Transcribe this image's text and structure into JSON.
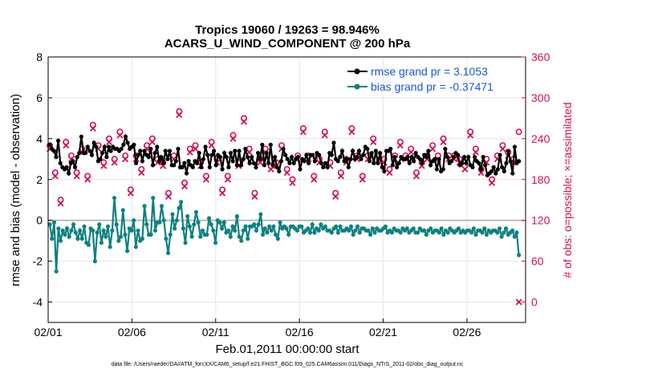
{
  "chart_data": {
    "type": "line",
    "title": "Tropics 19060 / 19263 = 98.946%",
    "subtitle": "ACARS_U_WIND_COMPONENT @ 200 hPa",
    "xlabel": "Feb.01,2011 00:00:00 start",
    "ylabel_left": "rmse and bias (model - observation)",
    "ylabel_right": "# of obs: o=possible; ×=assimilated",
    "ylim_left": [
      -5,
      8
    ],
    "ylim_right": [
      -30,
      360
    ],
    "xlim": [
      0,
      28.5
    ],
    "x_ticks": [
      0,
      5,
      10,
      15,
      20,
      25
    ],
    "x_tick_labels": [
      "02/01",
      "02/06",
      "02/11",
      "02/16",
      "02/21",
      "02/26"
    ],
    "y_ticks_left": [
      -4,
      -2,
      0,
      2,
      4,
      6,
      8
    ],
    "y_ticks_right": [
      0,
      60,
      120,
      180,
      240,
      300,
      360
    ],
    "legend": {
      "position": "top-right",
      "entries": [
        "rmse grand pr = 3.1053",
        "bias grand pr = -0.37471"
      ]
    },
    "footer": "data file: /Users/raeder/DAI/ATM_forcXX/CAM6_setup/f.e21.FHIST_BGC.f09_025.CAM6assim.011/Diags_NTrS_2011-02/obs_diag_output.nc",
    "series": [
      {
        "name": "rmse",
        "color": "#000000",
        "values": [
          3.7,
          3.5,
          3.4,
          3.1,
          3.9,
          2.8,
          2.6,
          2.5,
          2.6,
          2.3,
          2.8,
          2.9,
          2.6,
          3.1,
          3.3,
          4.1,
          3.3,
          3.3,
          3.6,
          3.4,
          3.2,
          3.8,
          3.6,
          2.9,
          3.0,
          3.3,
          3.6,
          3.1,
          3.6,
          3.4,
          3.6,
          3.5,
          3.5,
          3.4,
          3.5,
          3.7,
          4.1,
          3.8,
          3.5,
          3.6,
          3.7,
          2.8,
          3.2,
          3.4,
          2.9,
          3.4,
          3.2,
          3.1,
          3.5,
          2.7,
          3.3,
          3.6,
          2.9,
          3.1,
          2.8,
          3.4,
          3.0,
          3.4,
          2.7,
          2.7,
          2.9,
          3.5,
          2.6,
          2.6,
          2.8,
          2.3,
          2.9,
          2.7,
          2.6,
          2.9,
          2.8,
          3.3,
          2.6,
          3.0,
          3.6,
          3.2,
          2.6,
          3.2,
          3.4,
          2.7,
          3.2,
          3.1,
          2.5,
          3.3,
          3.1,
          2.6,
          3.3,
          2.9,
          3.4,
          2.7,
          3.4,
          2.7,
          3.0,
          3.5,
          3.1,
          2.8,
          3.1,
          2.8,
          2.6,
          3.3,
          3.0,
          3.7,
          2.7,
          3.3,
          2.8,
          3.7,
          2.7,
          3.1,
          2.6,
          2.4,
          2.9,
          3.5,
          3.2,
          3.0,
          2.8,
          3.1,
          2.8,
          3.0,
          3.1,
          2.5,
          3.0,
          2.9,
          3.2,
          2.8,
          3.2,
          3.2,
          2.9,
          3.3,
          3.2,
          2.8,
          2.6,
          2.8,
          2.6,
          3.3,
          3.2,
          3.8,
          3.0,
          2.9,
          3.1,
          3.4,
          2.9,
          3.0,
          2.6,
          3.0,
          3.4,
          3.0,
          3.1,
          3.4,
          3.0,
          3.2,
          3.6,
          3.5,
          2.9,
          3.3,
          2.8,
          3.4,
          2.8,
          3.3,
          2.6,
          2.4,
          3.4,
          3.4,
          3.5,
          2.7,
          3.1,
          2.6,
          2.8,
          3.1,
          3.0,
          3.0,
          3.1,
          2.8,
          3.1,
          2.9,
          3.3,
          3.1,
          3.0,
          2.8,
          3.2,
          3.1,
          3.4,
          2.7,
          2.9,
          3.0,
          2.5,
          3.0,
          2.4,
          2.5,
          3.5,
          3.1,
          2.8,
          2.9,
          3.1,
          3.3,
          3.2,
          2.7,
          2.8,
          3.1,
          2.8,
          3.1,
          2.7,
          2.6,
          3.1,
          2.9,
          2.8,
          2.5,
          3.1,
          2.7,
          2.2,
          2.3,
          2.4,
          2.6,
          2.3,
          2.5,
          3.2,
          2.6,
          2.4,
          2.8,
          3.4,
          2.9,
          2.3,
          3.6,
          2.8,
          2.9
        ]
      },
      {
        "name": "bias",
        "color": "#108080",
        "values": [
          -0.2,
          -0.9,
          -0.1,
          -2.5,
          -0.4,
          -1.0,
          -0.5,
          -0.7,
          -0.4,
          -0.8,
          -0.5,
          -0.2,
          -0.6,
          -0.9,
          -0.5,
          -0.9,
          -0.3,
          -1.1,
          -1.2,
          -0.4,
          -0.5,
          -2.0,
          -0.6,
          -0.2,
          -1.1,
          -0.5,
          -0.8,
          -0.3,
          -1.3,
          -0.5,
          1.1,
          -0.2,
          -1.0,
          -0.8,
          0.5,
          -0.7,
          -1.5,
          -0.4,
          -0.5,
          0.0,
          -1.3,
          -0.5,
          -1.0,
          -0.9,
          0.7,
          -0.2,
          -0.7,
          -0.7,
          1.1,
          -0.5,
          -0.1,
          -0.1,
          0.7,
          0.0,
          -0.9,
          -1.6,
          -0.7,
          0.3,
          -0.4,
          0.0,
          0.6,
          0.9,
          -0.4,
          -1.1,
          0.2,
          -0.3,
          -0.8,
          -0.2,
          0.4,
          -0.1,
          -0.8,
          -0.5,
          -0.7,
          -0.7,
          0.1,
          -0.2,
          -0.5,
          -1.1,
          0.0,
          -0.1,
          -0.4,
          -0.1,
          -0.6,
          -0.5,
          -0.8,
          -0.3,
          -0.5,
          0.2,
          -0.8,
          -1.0,
          -0.5,
          -0.3,
          -0.9,
          -0.3,
          -0.3,
          -0.2,
          -0.5,
          -0.2,
          0.3,
          -0.7,
          -0.4,
          -0.6,
          -0.3,
          -0.5,
          -0.3,
          -0.7,
          -0.9,
          -0.1,
          -0.4,
          -0.3,
          -0.4,
          -0.7,
          -0.3,
          -0.3,
          -0.4,
          -0.5,
          -0.3,
          -0.3,
          -0.6,
          -0.5,
          -0.4,
          -0.6,
          -0.2,
          -0.6,
          -0.4,
          -0.5,
          -0.2,
          -0.4,
          -0.3,
          -0.5,
          -0.5,
          -0.6,
          -0.4,
          -0.3,
          -0.6,
          -0.3,
          -0.5,
          -0.5,
          -0.4,
          -0.5,
          -0.3,
          -0.7,
          -0.5,
          -0.3,
          -0.6,
          -0.4,
          -0.4,
          -0.5,
          -0.5,
          -0.7,
          -0.4,
          -0.6,
          -0.4,
          -0.5,
          -0.5,
          -0.4,
          -0.3,
          -0.6,
          -0.5,
          -0.6,
          -0.4,
          -0.5,
          -0.5,
          -0.6,
          -0.4,
          -0.5,
          -0.4,
          -0.6,
          -0.5,
          -0.4,
          -0.6,
          -0.6,
          -0.4,
          -0.5,
          -0.5,
          -0.7,
          -0.5,
          -0.4,
          -0.6,
          -0.5,
          -0.5,
          -0.6,
          -0.4,
          -0.7,
          -0.5,
          -0.6,
          -0.4,
          -0.5,
          -0.6,
          -0.5,
          -0.4,
          -0.6,
          -0.5,
          -0.6,
          -0.5,
          -0.5,
          -0.6,
          -0.4,
          -0.7,
          -0.5,
          -0.5,
          -0.6,
          -0.4,
          -0.7,
          -0.5,
          -0.6,
          -0.5,
          -0.5,
          -0.6,
          -0.4,
          -0.8,
          -0.6,
          -0.4,
          -0.7,
          -0.6,
          -0.5,
          -0.8,
          -0.6,
          -1.7
        ]
      },
      {
        "name": "# of obs possible (o)",
        "color": "#d0105a",
        "marker": "o",
        "axis": "right",
        "values": [
          230,
          190,
          150,
          235,
          215,
          190,
          225,
          185,
          260,
          230,
          205,
          240,
          210,
          250,
          215,
          165,
          215,
          195,
          230,
          240,
          210,
          205,
          160,
          215,
          280,
          175,
          225,
          230,
          205,
          185,
          235,
          210,
          165,
          185,
          245,
          205,
          270,
          225,
          160,
          210,
          225,
          200,
          205,
          230,
          195,
          180,
          215,
          255,
          215,
          185,
          210,
          250,
          205,
          160,
          190,
          210,
          255,
          215,
          185,
          215,
          240,
          215,
          210,
          195,
          215,
          235,
          215,
          225,
          190,
          205,
          215,
          230,
          215,
          240,
          215,
          215,
          210,
          200,
          250,
          225,
          195,
          210,
          180,
          215,
          230,
          220,
          210,
          250
        ]
      },
      {
        "name": "# of obs assimilated (x)",
        "color": "#d0105a",
        "marker": "x",
        "axis": "right",
        "values": [
          225,
          185,
          145,
          230,
          210,
          185,
          220,
          180,
          255,
          225,
          200,
          235,
          205,
          245,
          210,
          160,
          210,
          190,
          225,
          235,
          205,
          200,
          155,
          210,
          275,
          170,
          220,
          225,
          200,
          180,
          230,
          205,
          160,
          180,
          240,
          200,
          265,
          220,
          155,
          205,
          220,
          195,
          200,
          225,
          190,
          175,
          210,
          250,
          210,
          180,
          205,
          245,
          200,
          155,
          185,
          205,
          250,
          210,
          180,
          210,
          235,
          210,
          205,
          190,
          210,
          230,
          210,
          220,
          185,
          200,
          210,
          225,
          210,
          235,
          210,
          210,
          205,
          195,
          245,
          220,
          190,
          205,
          175,
          210,
          225,
          215,
          205,
          0
        ]
      }
    ]
  }
}
